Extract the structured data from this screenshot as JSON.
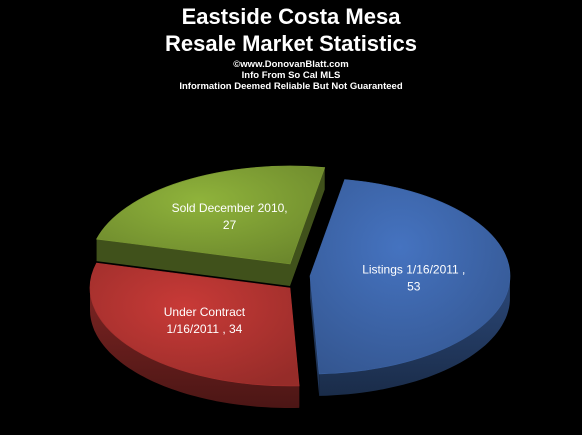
{
  "header": {
    "title_line1": "Eastside Costa Mesa",
    "title_line2": "Resale Market Statistics",
    "credit": "©www.DonovanBlatt.com",
    "source": "Info  From So Cal MLS",
    "disclaimer": "Information Deemed Reliable But Not Guaranteed"
  },
  "chart_data": {
    "type": "pie",
    "title": "Eastside Costa Mesa Resale Market Statistics",
    "style": "3D exploded pie",
    "legend": "none",
    "slices": [
      {
        "label_lines": [
          "Listings 1/16/2011   ,",
          "53"
        ],
        "value": 53,
        "color": "#4573c0",
        "side_color": "#1f3d6f"
      },
      {
        "label_lines": [
          "Under Contract",
          "1/16/2011   , 34"
        ],
        "value": 34,
        "color": "#c83a37",
        "side_color": "#6e1a18"
      },
      {
        "label_lines": [
          "Sold December  2010,",
          "27"
        ],
        "value": 27,
        "color": "#8fb33b",
        "side_color": "#4f6a1c"
      }
    ]
  }
}
